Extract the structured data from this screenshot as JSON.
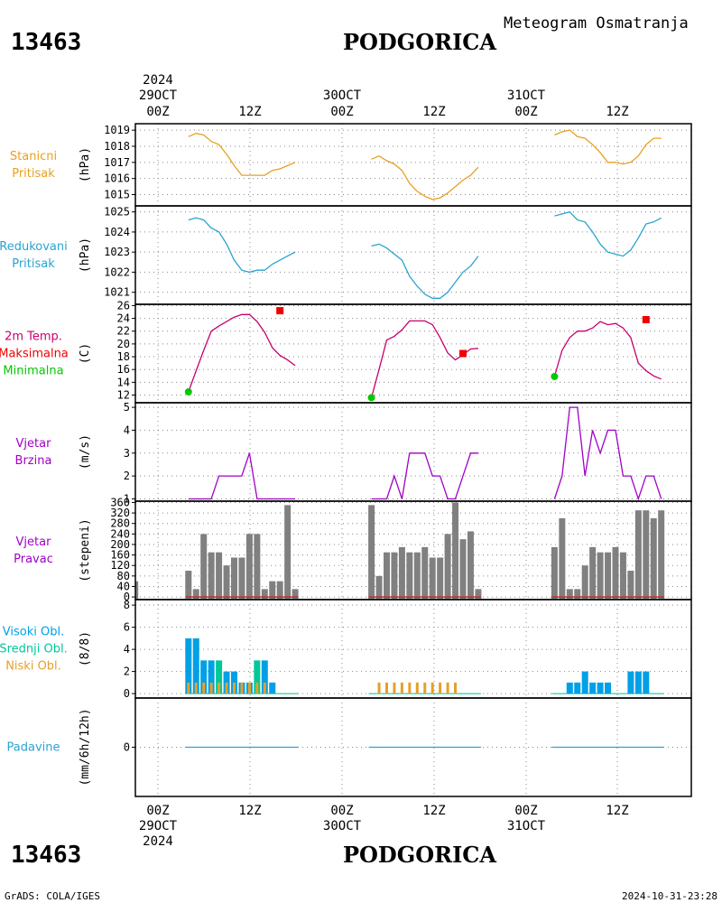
{
  "header": {
    "station_id": "13463",
    "station_name": "PODGORICA",
    "product": "Meteogram Osmatranja"
  },
  "time_axis": {
    "top": [
      {
        "line1": "2024",
        "line2": "29OCT",
        "line3": "00Z"
      },
      {
        "line1": "",
        "line2": "",
        "line3": "12Z"
      },
      {
        "line1": "",
        "line2": "30OCT",
        "line3": "00Z"
      },
      {
        "line1": "",
        "line2": "",
        "line3": "12Z"
      },
      {
        "line1": "",
        "line2": "31OCT",
        "line3": "00Z"
      },
      {
        "line1": "",
        "line2": "",
        "line3": "12Z"
      }
    ],
    "bottom": [
      {
        "line1": "00Z",
        "line2": "29OCT",
        "line3": "2024"
      },
      {
        "line1": "12Z",
        "line2": "",
        "line3": ""
      },
      {
        "line1": "00Z",
        "line2": "30OCT",
        "line3": ""
      },
      {
        "line1": "12Z",
        "line2": "",
        "line3": ""
      },
      {
        "line1": "00Z",
        "line2": "31OCT",
        "line3": ""
      },
      {
        "line1": "12Z",
        "line2": "",
        "line3": ""
      }
    ]
  },
  "footer": {
    "credit": "GrADS: COLA/IGES",
    "timestamp": "2024-10-31-23:28"
  },
  "colors": {
    "station_pressure": "#e8a020",
    "reduced_pressure": "#2aa3d0",
    "tmax": "#f00000",
    "tmin": "#00c800",
    "temp_line": "#c8006e",
    "wind": "#a000c8",
    "wind_dir_bar": "#808080",
    "wind_dir_base": "#c82828",
    "cloud_high": "#00a0e6",
    "cloud_mid": "#00c898",
    "cloud_low": "#e6a028",
    "precip": "#2aa3d0"
  },
  "chart_data": [
    {
      "type": "line",
      "panel": "station_pressure",
      "label_lines": [
        "Stanicni",
        "Pritisak"
      ],
      "ylabel": "(hPa)",
      "yticks": [
        1015,
        1016,
        1017,
        1018,
        1019
      ],
      "ylim": [
        1014.3,
        1019.4
      ],
      "grid": true,
      "segments": [
        {
          "x": [
            4,
            5,
            6,
            7,
            8,
            9,
            10,
            11,
            12,
            13,
            14,
            15,
            16,
            17,
            18
          ],
          "y": [
            1018.6,
            1018.8,
            1018.7,
            1018.3,
            1018.1,
            1017.5,
            1016.8,
            1016.2,
            1016.2,
            1016.2,
            1016.2,
            1016.5,
            1016.6,
            1016.8,
            1017.0
          ]
        },
        {
          "x": [
            28,
            29,
            30,
            31,
            32,
            33,
            34,
            35,
            36,
            37,
            38,
            39,
            40,
            41,
            42
          ],
          "y": [
            1017.2,
            1017.4,
            1017.1,
            1016.9,
            1016.5,
            1015.7,
            1015.2,
            1014.9,
            1014.7,
            1014.8,
            1015.1,
            1015.5,
            1015.9,
            1016.2,
            1016.7
          ]
        },
        {
          "x": [
            52,
            53,
            54,
            55,
            56,
            57,
            58,
            59,
            60,
            61,
            62,
            63,
            64,
            65,
            66
          ],
          "y": [
            1018.7,
            1018.9,
            1019.0,
            1018.6,
            1018.5,
            1018.1,
            1017.6,
            1017.0,
            1017.0,
            1016.9,
            1017.0,
            1017.4,
            1018.1,
            1018.5,
            1018.5
          ]
        }
      ]
    },
    {
      "type": "line",
      "panel": "reduced_pressure",
      "label_lines": [
        "Redukovani",
        "Pritisak"
      ],
      "ylabel": "(hPa)",
      "yticks": [
        1021,
        1022,
        1023,
        1024,
        1025
      ],
      "ylim": [
        1020.4,
        1025.3
      ],
      "grid": true,
      "segments": [
        {
          "x": [
            4,
            5,
            6,
            7,
            8,
            9,
            10,
            11,
            12,
            13,
            14,
            15,
            16,
            17,
            18
          ],
          "y": [
            1024.6,
            1024.7,
            1024.6,
            1024.2,
            1024.0,
            1023.4,
            1022.6,
            1022.1,
            1022.0,
            1022.1,
            1022.1,
            1022.4,
            1022.6,
            1022.8,
            1023.0
          ]
        },
        {
          "x": [
            28,
            29,
            30,
            31,
            32,
            33,
            34,
            35,
            36,
            37,
            38,
            39,
            40,
            41,
            42
          ],
          "y": [
            1023.3,
            1023.4,
            1023.2,
            1022.9,
            1022.6,
            1021.8,
            1021.3,
            1020.9,
            1020.7,
            1020.7,
            1021.0,
            1021.5,
            1022.0,
            1022.3,
            1022.8
          ]
        },
        {
          "x": [
            52,
            53,
            54,
            55,
            56,
            57,
            58,
            59,
            60,
            61,
            62,
            63,
            64,
            65,
            66
          ],
          "y": [
            1024.8,
            1024.9,
            1025.0,
            1024.6,
            1024.5,
            1024.0,
            1023.4,
            1023.0,
            1022.9,
            1022.8,
            1023.1,
            1023.7,
            1024.4,
            1024.5,
            1024.7
          ]
        }
      ]
    },
    {
      "type": "line",
      "panel": "temperature",
      "label_lines": [
        "2m Temp.",
        "Maksimalna",
        "Minimalna"
      ],
      "ylabel": "(C)",
      "yticks": [
        12,
        14,
        16,
        18,
        20,
        22,
        24,
        26
      ],
      "ylim": [
        10.8,
        26.2
      ],
      "grid": true,
      "segments": [
        {
          "x": [
            4,
            5,
            6,
            7,
            8,
            9,
            10,
            11,
            12,
            13,
            14,
            15,
            16,
            17,
            18
          ],
          "y": [
            12.5,
            15.8,
            19.0,
            22.0,
            22.8,
            23.5,
            24.2,
            24.6,
            24.6,
            23.5,
            21.8,
            19.4,
            18.2,
            17.5,
            16.6
          ]
        },
        {
          "x": [
            28,
            29,
            30,
            31,
            32,
            33,
            34,
            35,
            36,
            37,
            38,
            39,
            40,
            41,
            42
          ],
          "y": [
            11.6,
            16.0,
            20.6,
            21.2,
            22.2,
            23.6,
            23.6,
            23.6,
            23.0,
            21.0,
            18.6,
            17.5,
            18.3,
            19.2,
            19.3
          ]
        },
        {
          "x": [
            52,
            53,
            54,
            55,
            56,
            57,
            58,
            59,
            60,
            61,
            62,
            63,
            64,
            65,
            66
          ],
          "y": [
            14.9,
            19.0,
            21.0,
            22.0,
            22.0,
            22.5,
            23.5,
            23.0,
            23.2,
            22.5,
            21.0,
            17.0,
            15.8,
            15.0,
            14.5
          ]
        }
      ],
      "tmax": [
        {
          "x": 16,
          "y": 25.2
        },
        {
          "x": 40,
          "y": 18.5
        },
        {
          "x": 64,
          "y": 23.8
        }
      ],
      "tmin": [
        {
          "x": 4,
          "y": 12.5
        },
        {
          "x": 28,
          "y": 11.6
        },
        {
          "x": 52,
          "y": 14.9
        }
      ]
    },
    {
      "type": "line",
      "panel": "wind_speed",
      "label_lines": [
        "Vjetar",
        "Brzina"
      ],
      "ylabel": "(m/s)",
      "yticks": [
        1,
        2,
        3,
        4,
        5
      ],
      "ylim": [
        0.9,
        5.2
      ],
      "grid": true,
      "segments": [
        {
          "x": [
            4,
            5,
            6,
            7,
            8,
            9,
            10,
            11,
            12,
            13,
            14,
            15,
            16,
            17,
            18
          ],
          "y": [
            1,
            1,
            1,
            1,
            2,
            2,
            2,
            2,
            3,
            1,
            1,
            1,
            1,
            1,
            1
          ]
        },
        {
          "x": [
            28,
            29,
            30,
            31,
            32,
            33,
            34,
            35,
            36,
            37,
            38,
            39,
            40,
            41,
            42
          ],
          "y": [
            1,
            1,
            1,
            2,
            1,
            3,
            3,
            3,
            2,
            2,
            1,
            1,
            2,
            3,
            3
          ]
        },
        {
          "x": [
            52,
            53,
            54,
            55,
            56,
            57,
            58,
            59,
            60,
            61,
            62,
            63,
            64,
            65,
            66
          ],
          "y": [
            1,
            2,
            5,
            5,
            2,
            4,
            3,
            4,
            4,
            2,
            2,
            1,
            2,
            2,
            1
          ]
        }
      ]
    },
    {
      "type": "bar",
      "panel": "wind_direction",
      "label_lines": [
        "Vjetar",
        "Pravac"
      ],
      "ylabel": "(stepeni)",
      "yticks": [
        0,
        40,
        80,
        120,
        160,
        200,
        240,
        280,
        320,
        360
      ],
      "ylim": [
        -10,
        365
      ],
      "grid": true,
      "groups": [
        {
          "x": [
            -3
          ],
          "values": [
            60
          ]
        },
        {
          "x": [
            4,
            5,
            6,
            7,
            8,
            9,
            10,
            11,
            12,
            13,
            14,
            15,
            16,
            17,
            18
          ],
          "values": [
            100,
            30,
            240,
            170,
            170,
            120,
            150,
            150,
            240,
            240,
            30,
            60,
            60,
            350,
            30
          ]
        },
        {
          "x": [
            28,
            29,
            30,
            31,
            32,
            33,
            34,
            35,
            36,
            37,
            38,
            39,
            40,
            41,
            42
          ],
          "values": [
            350,
            80,
            170,
            170,
            190,
            170,
            170,
            190,
            150,
            150,
            240,
            360,
            220,
            250,
            30
          ]
        },
        {
          "x": [
            52,
            53,
            54,
            55,
            56,
            57,
            58,
            59,
            60,
            61,
            62,
            63,
            64,
            65,
            66
          ],
          "values": [
            190,
            300,
            30,
            30,
            120,
            190,
            170,
            170,
            190,
            170,
            100,
            330,
            330,
            300,
            330
          ]
        }
      ]
    },
    {
      "type": "bar",
      "panel": "clouds",
      "label_lines": [
        "Visoki Obl.",
        "Srednji Obl.",
        "Niski Obl."
      ],
      "ylabel": "(8/8)",
      "yticks": [
        0,
        2,
        4,
        6,
        8
      ],
      "ylim": [
        -0.4,
        8.5
      ],
      "grid": true,
      "high": [
        {
          "x": 4,
          "v": 5
        },
        {
          "x": 5,
          "v": 5
        },
        {
          "x": 6,
          "v": 3
        },
        {
          "x": 7,
          "v": 3
        },
        {
          "x": 9,
          "v": 2
        },
        {
          "x": 10,
          "v": 2
        },
        {
          "x": 11,
          "v": 1
        },
        {
          "x": 12,
          "v": 1
        },
        {
          "x": 14,
          "v": 3
        },
        {
          "x": 15,
          "v": 1
        },
        {
          "x": 54,
          "v": 1
        },
        {
          "x": 55,
          "v": 1
        },
        {
          "x": 56,
          "v": 2
        },
        {
          "x": 57,
          "v": 1
        },
        {
          "x": 58,
          "v": 1
        },
        {
          "x": 59,
          "v": 1
        },
        {
          "x": 62,
          "v": 2
        },
        {
          "x": 63,
          "v": 2
        },
        {
          "x": 64,
          "v": 2
        }
      ],
      "mid": [
        {
          "x": 8,
          "v": 3
        },
        {
          "x": 13,
          "v": 3
        }
      ],
      "low": [
        {
          "x": 4,
          "v": 1
        },
        {
          "x": 5,
          "v": 1
        },
        {
          "x": 6,
          "v": 1
        },
        {
          "x": 7,
          "v": 1
        },
        {
          "x": 8,
          "v": 1
        },
        {
          "x": 9,
          "v": 1
        },
        {
          "x": 10,
          "v": 1
        },
        {
          "x": 11,
          "v": 1
        },
        {
          "x": 12,
          "v": 1
        },
        {
          "x": 13,
          "v": 1
        },
        {
          "x": 14,
          "v": 1
        },
        {
          "x": 29,
          "v": 1
        },
        {
          "x": 30,
          "v": 1
        },
        {
          "x": 31,
          "v": 1
        },
        {
          "x": 32,
          "v": 1
        },
        {
          "x": 33,
          "v": 1
        },
        {
          "x": 34,
          "v": 1
        },
        {
          "x": 35,
          "v": 1
        },
        {
          "x": 36,
          "v": 1
        },
        {
          "x": 37,
          "v": 1
        },
        {
          "x": 38,
          "v": 1
        },
        {
          "x": 39,
          "v": 1
        }
      ],
      "zero_spans": [
        [
          4,
          18
        ],
        [
          28,
          42
        ],
        [
          52,
          66
        ]
      ]
    },
    {
      "type": "bar",
      "panel": "precipitation",
      "label_lines": [
        "Padavine"
      ],
      "ylabel": "(mm/6h/12h)",
      "yticks": [
        0
      ],
      "ylim": [
        -5,
        5
      ],
      "grid": true,
      "values_all_zero": true,
      "zero_spans": [
        [
          4,
          18
        ],
        [
          28,
          42
        ],
        [
          52,
          66
        ]
      ]
    }
  ]
}
